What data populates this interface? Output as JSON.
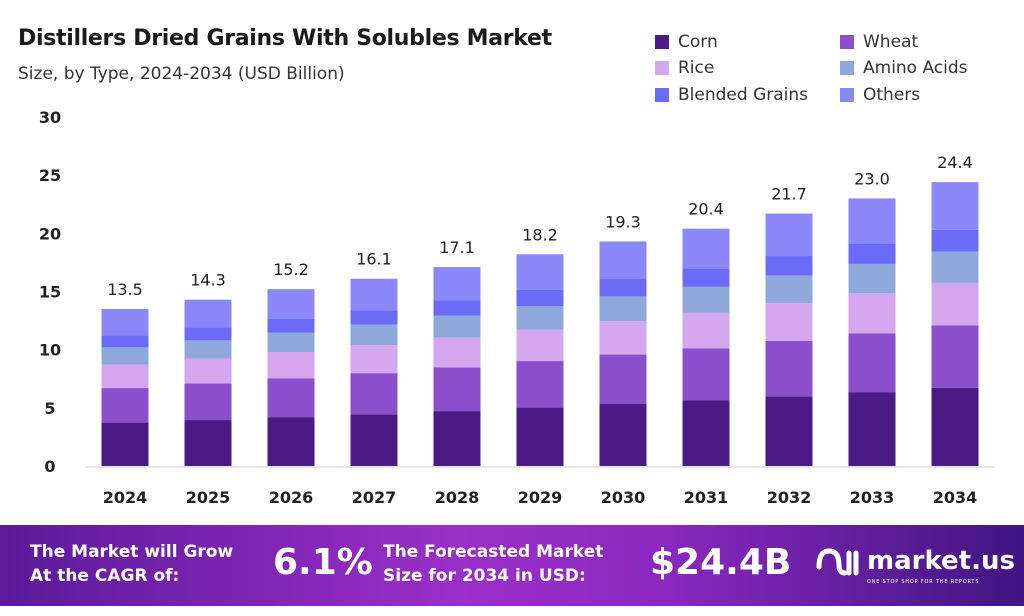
{
  "title": "Distillers Dried Grains With Solubles Market",
  "subtitle": "Size, by Type, 2024-2034 (USD Billion)",
  "chart_data": {
    "type": "bar",
    "stacked": true,
    "categories": [
      "2024",
      "2025",
      "2026",
      "2027",
      "2028",
      "2029",
      "2030",
      "2031",
      "2032",
      "2033",
      "2034"
    ],
    "totals": [
      13.5,
      14.3,
      15.2,
      16.1,
      17.1,
      18.2,
      19.3,
      20.4,
      21.7,
      23.0,
      24.4
    ],
    "total_labels": [
      "13.5",
      "14.3",
      "15.2",
      "16.1",
      "17.1",
      "18.2",
      "19.3",
      "20.4",
      "21.7",
      "23.0",
      "24.4"
    ],
    "series": [
      {
        "name": "Corn",
        "color": "#4b1a85",
        "values": [
          3.73,
          3.95,
          4.2,
          4.44,
          4.72,
          5.02,
          5.33,
          5.63,
          5.99,
          6.35,
          6.73
        ]
      },
      {
        "name": "Wheat",
        "color": "#8b4fcc",
        "values": [
          2.97,
          3.15,
          3.34,
          3.54,
          3.76,
          4.0,
          4.25,
          4.49,
          4.77,
          5.06,
          5.37
        ]
      },
      {
        "name": "Rice",
        "color": "#d3a6ee",
        "values": [
          2.01,
          2.13,
          2.26,
          2.4,
          2.55,
          2.71,
          2.88,
          3.04,
          3.23,
          3.43,
          3.64
        ]
      },
      {
        "name": "Amino Acids",
        "color": "#8fa8dc",
        "values": [
          1.49,
          1.57,
          1.67,
          1.77,
          1.88,
          2.0,
          2.12,
          2.24,
          2.39,
          2.53,
          2.68
        ]
      },
      {
        "name": "Blended Grains",
        "color": "#6b6bf8",
        "values": [
          1.04,
          1.1,
          1.17,
          1.24,
          1.32,
          1.4,
          1.49,
          1.57,
          1.67,
          1.77,
          1.88
        ]
      },
      {
        "name": "Others",
        "color": "#8a87f8",
        "values": [
          2.26,
          2.4,
          2.56,
          2.71,
          2.87,
          3.07,
          3.23,
          3.43,
          3.65,
          3.86,
          4.1
        ]
      }
    ],
    "ylim": [
      0,
      30
    ],
    "yticks": [
      "0",
      "5",
      "10",
      "15",
      "20",
      "25",
      "30"
    ],
    "grid": false,
    "legend_position": "top-right"
  },
  "banner": {
    "cagr_label_1": "The Market will Grow",
    "cagr_label_2": "At the CAGR of:",
    "cagr_value": "6.1%",
    "forecast_label_1": "The Forecasted Market",
    "forecast_label_2": "Size for 2034 in USD:",
    "forecast_value": "$24.4B",
    "logo_name": "market.us",
    "logo_tagline": "ONE STOP SHOP FOR THE REPORTS"
  }
}
